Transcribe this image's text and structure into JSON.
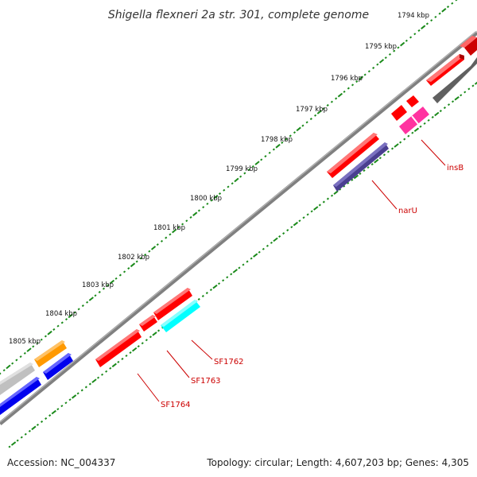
{
  "title": "Shigella flexneri 2a str. 301, complete genome",
  "ticks": [
    "1794 kbp",
    "1795 kbp",
    "1796 kbp",
    "1797 kbp",
    "1798 kbp",
    "1799 kbp",
    "1800 kbp",
    "1801 kbp",
    "1802 kbp",
    "1803 kbp",
    "1804 kbp",
    "1805 kbp"
  ],
  "genes": {
    "insB": "insB",
    "narU": "narU",
    "SF1762": "SF1762",
    "SF1763": "SF1763",
    "SF1764": "SF1764"
  },
  "footer": {
    "accession": "Accession: NC_004337",
    "info": "Topology: circular; Length: 4,607,203 bp; Genes: 4,305"
  },
  "colors": {
    "backbone": "#808080",
    "tick_mark": "#1a8a1a",
    "label_line": "#cc0000",
    "gene_red": "#ff0000",
    "gene_cyan": "#00ffff",
    "gene_purple": "#4a3f90",
    "gene_pink": "#ff33a0",
    "gene_blue": "#0000ee",
    "gene_orange": "#ff9900",
    "gene_gray": "#c0c0c0",
    "gene_darkgray": "#606060"
  }
}
